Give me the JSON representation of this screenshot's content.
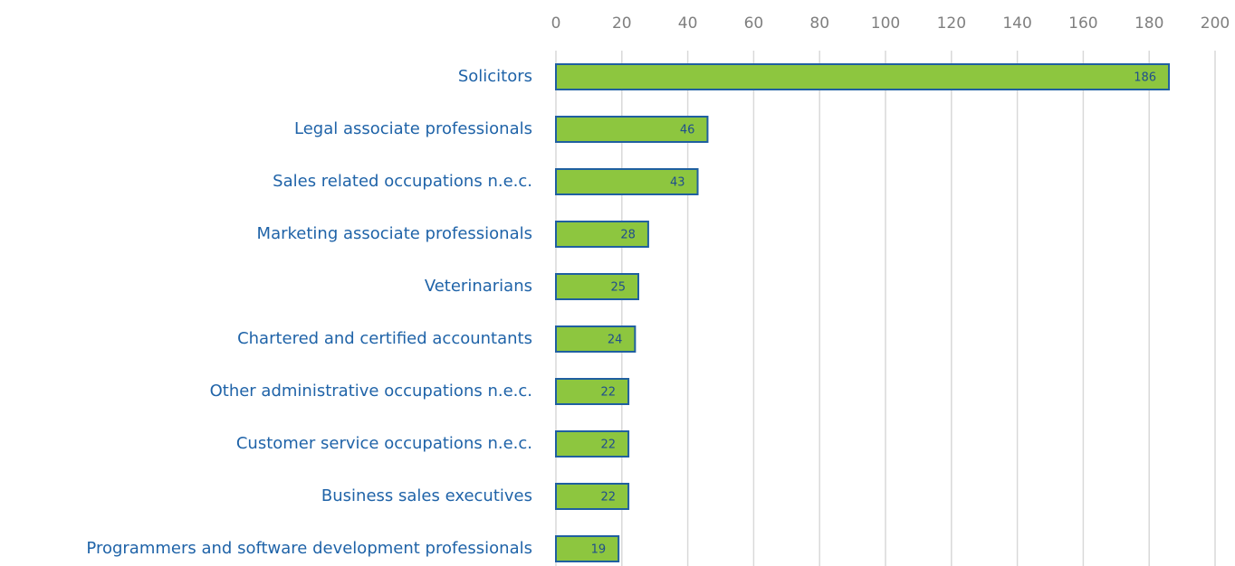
{
  "chart_data": {
    "type": "bar",
    "categories": [
      "Solicitors",
      "Legal associate professionals",
      "Sales related occupations n.e.c.",
      "Marketing associate professionals",
      "Veterinarians",
      "Chartered and certified accountants",
      "Other administrative occupations n.e.c.",
      "Customer service occupations n.e.c.",
      "Business sales executives",
      "Programmers and software development professionals"
    ],
    "values": [
      186,
      46,
      43,
      28,
      25,
      24,
      22,
      22,
      22,
      19
    ],
    "color": "#8dc63f",
    "xlim": [
      0,
      200
    ],
    "xticks": [
      0,
      20,
      40,
      60,
      80,
      100,
      120,
      140,
      160,
      180,
      200
    ],
    "grid": true
  }
}
